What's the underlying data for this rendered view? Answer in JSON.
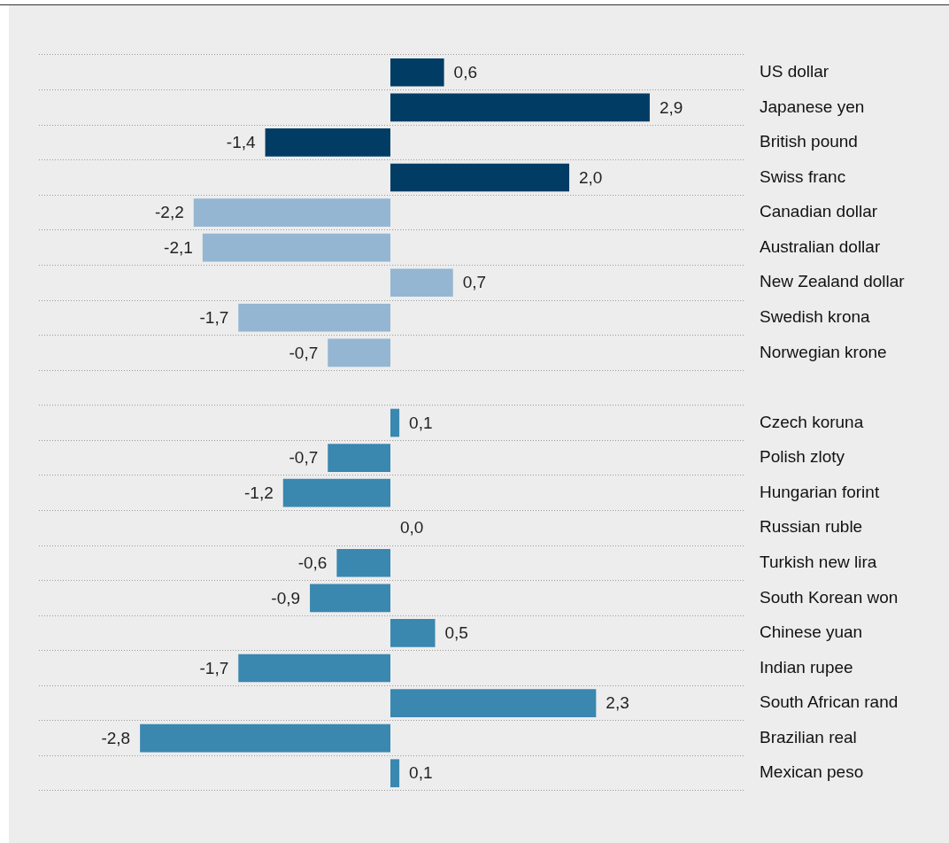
{
  "chart_data": {
    "type": "bar",
    "orientation": "horizontal",
    "categories": [
      "US dollar",
      "Japanese yen",
      "British pound",
      "Swiss franc",
      "Canadian dollar",
      "Australian dollar",
      "New Zealand dollar",
      "Swedish krona",
      "Norwegian krone",
      null,
      "Czech koruna",
      "Polish zloty",
      "Hungarian forint",
      "Russian ruble",
      "Turkish new lira",
      "South Korean won",
      "Chinese yuan",
      "Indian rupee",
      "South African rand",
      "Brazilian real",
      "Mexican peso"
    ],
    "values": [
      0.6,
      2.9,
      -1.4,
      2.0,
      -2.2,
      -2.1,
      0.7,
      -1.7,
      -0.7,
      null,
      0.1,
      -0.7,
      -1.2,
      0.0,
      -0.6,
      -0.9,
      0.5,
      -1.7,
      2.3,
      -2.8,
      0.1
    ],
    "value_labels": [
      "0,6",
      "2,9",
      "-1,4",
      "2,0",
      "-2,2",
      "-2,1",
      "0,7",
      "-1,7",
      "-0,7",
      null,
      "0,1",
      "-0,7",
      "-1,2",
      "0,0",
      "-0,6",
      "-0,9",
      "0,5",
      "-1,7",
      "2,3",
      "-2,8",
      "0,1"
    ],
    "colors": [
      "#003c64",
      "#003c64",
      "#003c64",
      "#003c64",
      "#94b6d2",
      "#94b6d2",
      "#94b6d2",
      "#94b6d2",
      "#94b6d2",
      "#94b6d2",
      "#3a87b0",
      "#3a87b0",
      "#3a87b0",
      "#3a87b0",
      "#3a87b0",
      "#3a87b0",
      "#3a87b0",
      "#3a87b0",
      "#3a87b0",
      "#3a87b0",
      "#3a87b0"
    ],
    "xlim": [
      -3.93,
      3.95
    ],
    "grid": "y",
    "tick_labels": "y"
  }
}
